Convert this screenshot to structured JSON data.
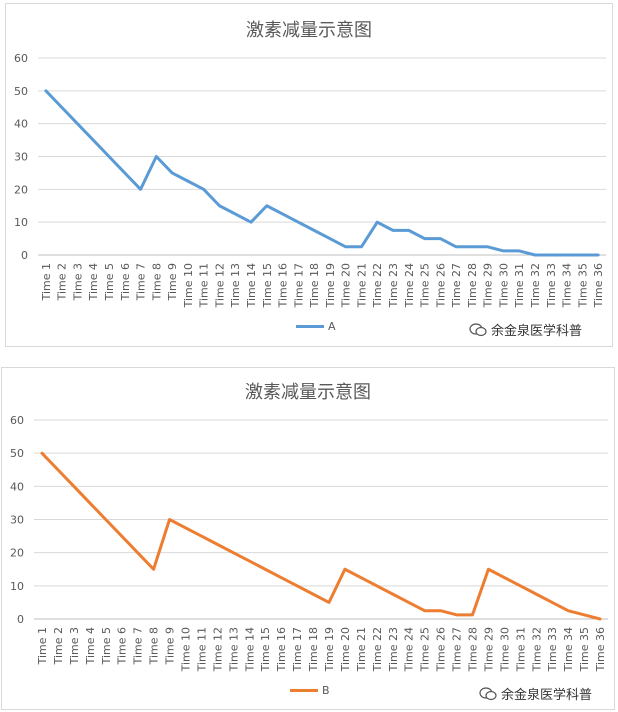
{
  "chart_data": [
    {
      "type": "line",
      "title": "激素减量示意图",
      "xlabel": "",
      "ylabel": "",
      "ylim": [
        0,
        60
      ],
      "yticks": [
        0,
        10,
        20,
        30,
        40,
        50,
        60
      ],
      "grid": true,
      "legend_position": "bottom",
      "categories": [
        "Time 1",
        "Time 2",
        "Time 3",
        "Time 4",
        "Time 5",
        "Time 6",
        "Time 7",
        "Time 8",
        "Time 9",
        "Time 10",
        "Time 11",
        "Time 12",
        "Time 13",
        "Time 14",
        "Time 15",
        "Time 16",
        "Time 17",
        "Time 18",
        "Time 19",
        "Time 20",
        "Time 21",
        "Time 22",
        "Time 23",
        "Time 24",
        "Time 25",
        "Time 26",
        "Time 27",
        "Time 28",
        "Time 29",
        "Time 30",
        "Time 31",
        "Time 32",
        "Time 33",
        "Time 34",
        "Time 35",
        "Time 36"
      ],
      "series": [
        {
          "name": "A",
          "color": "#5b9bd5",
          "values": [
            50,
            45,
            40,
            35,
            30,
            25,
            20,
            30,
            25,
            22.5,
            20,
            15,
            12.5,
            10,
            15,
            12.5,
            10,
            7.5,
            5,
            2.5,
            2.5,
            10,
            7.5,
            7.5,
            5,
            5,
            2.5,
            2.5,
            2.5,
            1.25,
            1.25,
            0,
            0,
            0,
            0,
            0
          ]
        }
      ]
    },
    {
      "type": "line",
      "title": "激素减量示意图",
      "xlabel": "",
      "ylabel": "",
      "ylim": [
        0,
        60
      ],
      "yticks": [
        0,
        10,
        20,
        30,
        40,
        50,
        60
      ],
      "grid": true,
      "legend_position": "bottom",
      "categories": [
        "Time 1",
        "Time 2",
        "Time 3",
        "Time 4",
        "Time 5",
        "Time 6",
        "Time 7",
        "Time 8",
        "Time 9",
        "Time 10",
        "Time 11",
        "Time 12",
        "Time 13",
        "Time 14",
        "Time 15",
        "Time 16",
        "Time 17",
        "Time 18",
        "Time 19",
        "Time 20",
        "Time 21",
        "Time 22",
        "Time 23",
        "Time 24",
        "Time 25",
        "Time 26",
        "Time 27",
        "Time 28",
        "Time 29",
        "Time 30",
        "Time 31",
        "Time 32",
        "Time 33",
        "Time 34",
        "Time 35",
        "Time 36"
      ],
      "series": [
        {
          "name": "B",
          "color": "#ed7d31",
          "values": [
            50,
            45,
            40,
            35,
            30,
            25,
            20,
            15,
            30,
            27.5,
            25,
            22.5,
            20,
            17.5,
            15,
            12.5,
            10,
            7.5,
            5,
            15,
            12.5,
            10,
            7.5,
            5,
            2.5,
            2.5,
            1.25,
            1.25,
            15,
            12.5,
            10,
            7.5,
            5,
            2.5,
            1.25,
            0
          ]
        }
      ]
    }
  ],
  "watermark": {
    "text": "余金泉医学科普",
    "icon": "wechat-icon"
  }
}
